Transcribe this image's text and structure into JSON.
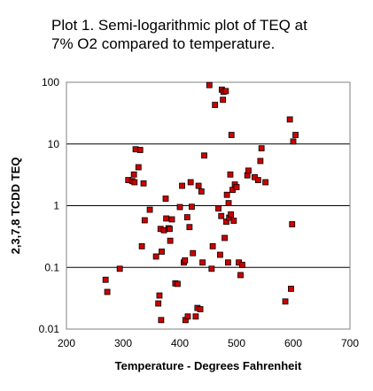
{
  "chart_data": {
    "type": "scatter",
    "title": "Plot 1.  Semi-logarithmic plot of TEQ at\n7% O2 compared to temperature.",
    "xlabel": "Temperature - Degrees Fahrenheit",
    "ylabel": "2,3,7,8 TCDD TEQ",
    "xlim": [
      200,
      700
    ],
    "ylim": [
      0.01,
      100
    ],
    "y_scale": "log",
    "x_ticks": [
      "200",
      "300",
      "400",
      "500",
      "600",
      "700"
    ],
    "y_ticks": [
      "0.01",
      "0.1",
      "1",
      "10",
      "100"
    ],
    "grid": "horizontal",
    "marker_color": "#cc0000",
    "series": [
      {
        "points": [
          [
            269,
            0.063
          ],
          [
            272,
            0.04
          ],
          [
            294,
            0.095
          ],
          [
            309,
            2.6
          ],
          [
            316,
            2.5
          ],
          [
            319,
            3.2
          ],
          [
            320,
            2.4
          ],
          [
            322,
            8.2
          ],
          [
            327,
            4.2
          ],
          [
            330,
            8.0
          ],
          [
            333,
            0.22
          ],
          [
            336,
            2.3
          ],
          [
            338,
            0.58
          ],
          [
            347,
            0.86
          ],
          [
            358,
            0.15
          ],
          [
            362,
            0.026
          ],
          [
            364,
            0.035
          ],
          [
            366,
            0.42
          ],
          [
            367,
            0.014
          ],
          [
            368,
            0.18
          ],
          [
            372,
            0.4
          ],
          [
            375,
            1.3
          ],
          [
            376,
            0.62
          ],
          [
            380,
            0.43
          ],
          [
            382,
            0.42
          ],
          [
            383,
            0.27
          ],
          [
            386,
            0.6
          ],
          [
            392,
            0.055
          ],
          [
            396,
            0.054
          ],
          [
            400,
            0.95
          ],
          [
            404,
            2.1
          ],
          [
            407,
            0.12
          ],
          [
            409,
            0.13
          ],
          [
            410,
            0.014
          ],
          [
            413,
            0.65
          ],
          [
            414,
            0.016
          ],
          [
            417,
            0.45
          ],
          [
            419,
            2.4
          ],
          [
            421,
            0.96
          ],
          [
            423,
            0.17
          ],
          [
            428,
            0.016
          ],
          [
            431,
            0.022
          ],
          [
            433,
            2.1
          ],
          [
            436,
            0.021
          ],
          [
            438,
            1.7
          ],
          [
            440,
            0.12
          ],
          [
            443,
            6.5
          ],
          [
            452,
            90
          ],
          [
            456,
            0.095
          ],
          [
            458,
            0.22
          ],
          [
            462,
            43
          ],
          [
            468,
            0.9
          ],
          [
            471,
            0.16
          ],
          [
            473,
            0.68
          ],
          [
            474,
            76
          ],
          [
            476,
            52
          ],
          [
            477,
            70
          ],
          [
            479,
            0.3
          ],
          [
            481,
            72
          ],
          [
            482,
            0.55
          ],
          [
            483,
            1.5
          ],
          [
            485,
            0.12
          ],
          [
            486,
            1.1
          ],
          [
            487,
            0.64
          ],
          [
            489,
            3.2
          ],
          [
            490,
            0.72
          ],
          [
            491,
            14
          ],
          [
            493,
            1.8
          ],
          [
            495,
            0.57
          ],
          [
            497,
            2.2
          ],
          [
            500,
            2.0
          ],
          [
            504,
            0.12
          ],
          [
            507,
            0.075
          ],
          [
            510,
            0.11
          ],
          [
            519,
            3.1
          ],
          [
            521,
            3.7
          ],
          [
            532,
            2.9
          ],
          [
            538,
            2.6
          ],
          [
            542,
            5.3
          ],
          [
            544,
            8.5
          ],
          [
            551,
            2.4
          ],
          [
            586,
            0.028
          ],
          [
            594,
            25
          ],
          [
            596,
            0.045
          ],
          [
            598,
            0.5
          ],
          [
            600,
            11
          ],
          [
            604,
            14
          ]
        ]
      }
    ]
  }
}
